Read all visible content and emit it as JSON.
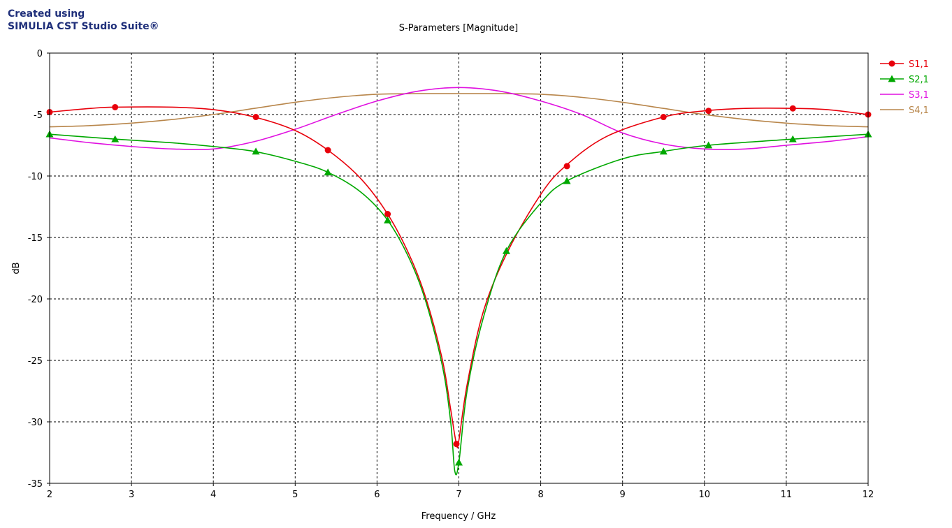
{
  "watermark": {
    "line1": "Created using",
    "line2": "SIMULIA CST Studio Suite®"
  },
  "chart_data": {
    "type": "line",
    "title": "S-Parameters [Magnitude]",
    "xlabel": "Frequency / GHz",
    "ylabel": "dB",
    "xlim": [
      2,
      12
    ],
    "ylim": [
      -35,
      0
    ],
    "xticks": [
      2,
      3,
      4,
      5,
      6,
      7,
      8,
      9,
      10,
      11,
      12
    ],
    "yticks": [
      0,
      -5,
      -10,
      -15,
      -20,
      -25,
      -30,
      -35
    ],
    "grid": true,
    "legend_position": "right",
    "series": [
      {
        "name": "S1,1",
        "color": "#e8000b",
        "marker": "circle",
        "x": [
          2,
          2.5,
          2.8,
          3.5,
          4.0,
          4.5,
          5.0,
          5.4,
          5.8,
          6.13,
          6.4,
          6.6,
          6.8,
          6.9,
          6.97,
          7.0,
          7.1,
          7.3,
          7.6,
          8.0,
          8.3,
          8.8,
          9.5,
          10.0,
          10.5,
          11.1,
          11.5,
          12
        ],
        "y": [
          -4.8,
          -4.5,
          -4.4,
          -4.4,
          -4.6,
          -5.2,
          -6.3,
          -7.9,
          -10.2,
          -13.1,
          -16.5,
          -20.0,
          -25.0,
          -29.0,
          -31.8,
          -31.5,
          -27.0,
          -21.0,
          -16.1,
          -11.5,
          -9.2,
          -6.8,
          -5.2,
          -4.7,
          -4.5,
          -4.5,
          -4.6,
          -5.0
        ],
        "marker_x": [
          2,
          2.8,
          4.52,
          5.4,
          6.13,
          6.97,
          8.32,
          9.5,
          10.05,
          11.08,
          12
        ],
        "marker_y": [
          -4.8,
          -4.4,
          -5.2,
          -7.9,
          -13.1,
          -31.8,
          -9.2,
          -5.2,
          -4.7,
          -4.5,
          -5.0
        ]
      },
      {
        "name": "S2,1",
        "color": "#00a800",
        "marker": "triangle",
        "x": [
          2,
          2.8,
          3.5,
          4.0,
          4.5,
          5.0,
          5.4,
          5.8,
          6.13,
          6.4,
          6.6,
          6.8,
          6.9,
          6.95,
          7.0,
          7.1,
          7.3,
          7.58,
          8.0,
          8.32,
          9.0,
          9.5,
          10.05,
          11.08,
          12
        ],
        "y": [
          -6.6,
          -7.0,
          -7.3,
          -7.6,
          -8.0,
          -8.8,
          -9.7,
          -11.3,
          -13.6,
          -16.8,
          -20.3,
          -25.5,
          -30.0,
          -34.0,
          -33.3,
          -27.5,
          -21.5,
          -16.1,
          -12.2,
          -10.4,
          -8.6,
          -8.0,
          -7.5,
          -7.0,
          -6.6
        ],
        "marker_x": [
          2,
          2.8,
          4.52,
          5.4,
          6.13,
          7.0,
          7.58,
          8.32,
          9.5,
          10.05,
          11.08,
          12
        ],
        "marker_y": [
          -6.6,
          -7.0,
          -8.0,
          -9.7,
          -13.6,
          -33.3,
          -16.1,
          -10.4,
          -8.0,
          -7.5,
          -7.0,
          -6.6
        ]
      },
      {
        "name": "S3,1",
        "color": "#e010e0",
        "marker": "none",
        "x": [
          2,
          2.5,
          3.0,
          3.5,
          4.0,
          4.5,
          5.0,
          5.5,
          6.0,
          6.5,
          7.0,
          7.5,
          8.0,
          8.5,
          9.0,
          9.5,
          10.0,
          10.5,
          11.0,
          11.5,
          12
        ],
        "y": [
          -6.9,
          -7.3,
          -7.6,
          -7.8,
          -7.8,
          -7.2,
          -6.2,
          -5.0,
          -3.9,
          -3.1,
          -2.8,
          -3.1,
          -3.9,
          -5.0,
          -6.5,
          -7.4,
          -7.8,
          -7.8,
          -7.5,
          -7.2,
          -6.8
        ]
      },
      {
        "name": "S4,1",
        "color": "#b8864b",
        "marker": "none",
        "x": [
          2,
          2.5,
          3.0,
          3.5,
          4.0,
          4.5,
          5.0,
          5.5,
          6.0,
          6.5,
          7.0,
          7.5,
          8.0,
          8.5,
          9.0,
          9.5,
          10.0,
          10.5,
          11.0,
          11.5,
          12
        ],
        "y": [
          -6.0,
          -5.9,
          -5.7,
          -5.4,
          -5.0,
          -4.5,
          -4.0,
          -3.6,
          -3.35,
          -3.3,
          -3.3,
          -3.3,
          -3.35,
          -3.6,
          -4.0,
          -4.5,
          -5.0,
          -5.4,
          -5.7,
          -5.9,
          -6.0
        ]
      }
    ]
  }
}
